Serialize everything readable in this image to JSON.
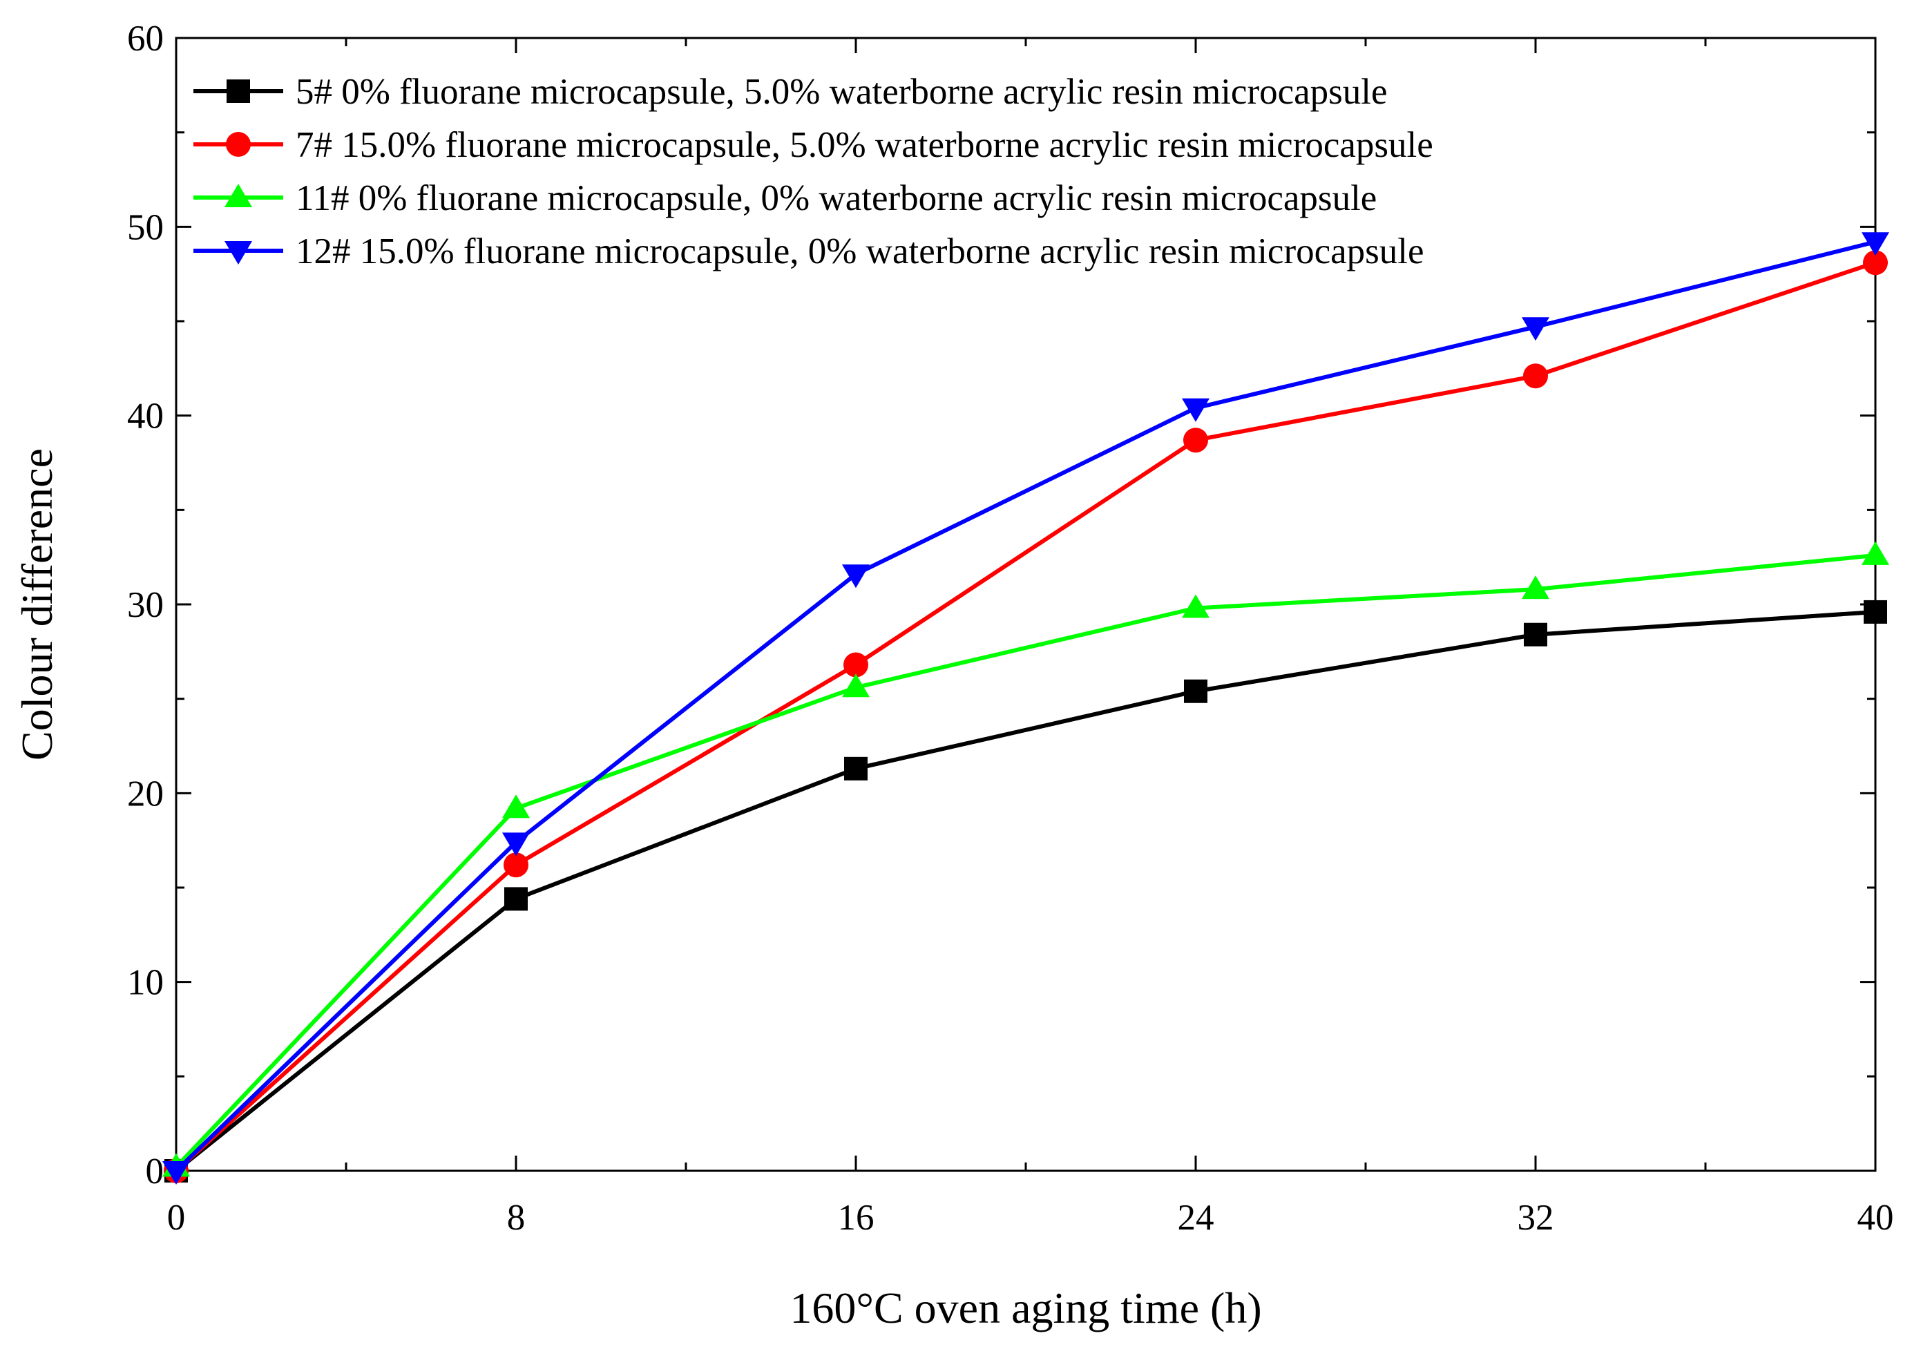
{
  "chart_data": {
    "type": "line",
    "title": "",
    "xlabel": "160°C oven aging time (h)",
    "ylabel": "Colour difference",
    "xlim": [
      0,
      40
    ],
    "ylim": [
      0,
      60
    ],
    "xticks": [
      0,
      8,
      16,
      24,
      32,
      40
    ],
    "xtick_labels": [
      "0",
      "8",
      "16",
      "24",
      "32",
      "40"
    ],
    "yticks": [
      0,
      10,
      20,
      30,
      40,
      50,
      60
    ],
    "ytick_labels": [
      "0",
      "10",
      "20",
      "30",
      "40",
      "50",
      "60"
    ],
    "x_minor_step": 4,
    "y_minor_step": 5,
    "grid": false,
    "legend_position": "top-left",
    "x": [
      0,
      8,
      16,
      24,
      32,
      40
    ],
    "series": [
      {
        "name": "5# 0% fluorane microcapsule, 5.0% waterborne acrylic resin microcapsule",
        "color": "#000000",
        "marker": "square",
        "values": [
          0,
          14.4,
          21.3,
          25.4,
          28.4,
          29.6
        ]
      },
      {
        "name": "7# 15.0% fluorane microcapsule, 5.0% waterborne acrylic resin microcapsule",
        "color": "#ff0000",
        "marker": "circle",
        "values": [
          0,
          16.2,
          26.8,
          38.7,
          42.1,
          48.1
        ]
      },
      {
        "name": "11# 0% fluorane microcapsule, 0% waterborne acrylic resin microcapsule",
        "color": "#00ff00",
        "marker": "triangle-up",
        "values": [
          0.2,
          19.2,
          25.6,
          29.8,
          30.8,
          32.6
        ]
      },
      {
        "name": "12# 15.0% fluorane microcapsule, 0% waterborne acrylic resin microcapsule",
        "color": "#0000ff",
        "marker": "triangle-down",
        "values": [
          0,
          17.4,
          31.6,
          40.4,
          44.7,
          49.2
        ]
      }
    ]
  }
}
